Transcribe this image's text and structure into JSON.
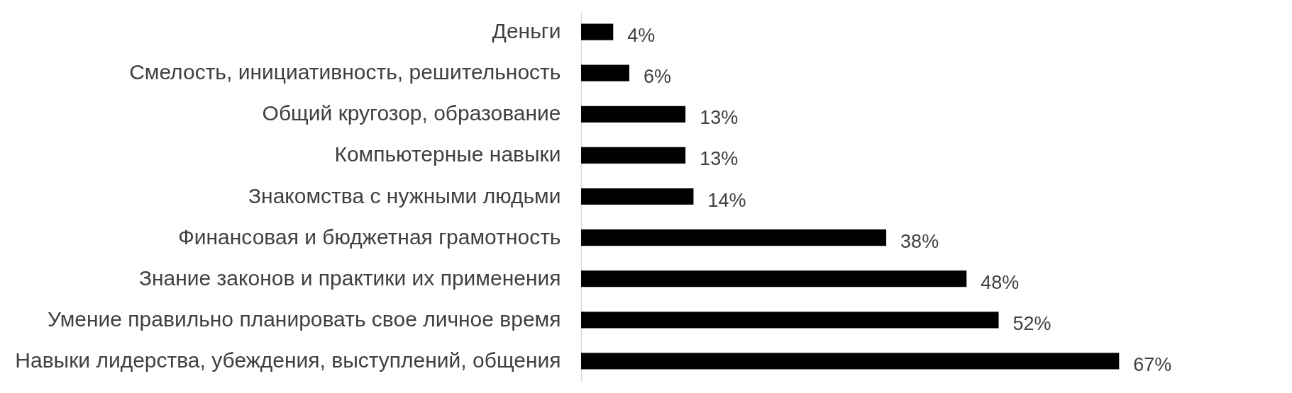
{
  "chart_data": {
    "type": "bar",
    "orientation": "horizontal",
    "categories": [
      "Деньги",
      "Смелость, инициативность, решительность",
      "Общий кругозор, образование",
      "Компьютерные навыки",
      "Знакомства с нужными людьми",
      "Финансовая и бюджетная грамотность",
      "Знание законов и практики их применения",
      "Умение правильно планировать свое личное время",
      "Навыки лидерства, убеждения, выступлений, общения"
    ],
    "values": [
      4,
      6,
      13,
      13,
      14,
      38,
      48,
      52,
      67
    ],
    "value_labels": [
      "4%",
      "6%",
      "13%",
      "13%",
      "14%",
      "38%",
      "48%",
      "52%",
      "67%"
    ],
    "color": "#000000"
  }
}
